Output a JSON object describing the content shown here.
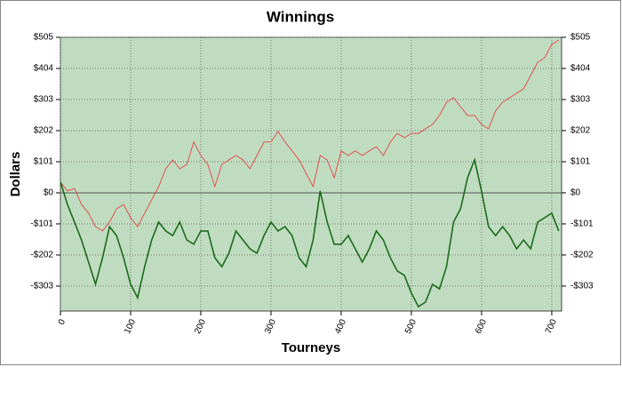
{
  "chart_data": {
    "type": "line",
    "title": "Winnings",
    "x_label": "Tourneys",
    "y_label": "Dollars",
    "x": [
      0,
      10,
      20,
      30,
      40,
      50,
      60,
      70,
      80,
      90,
      100,
      110,
      120,
      130,
      140,
      150,
      160,
      170,
      180,
      190,
      200,
      210,
      220,
      230,
      240,
      250,
      260,
      270,
      280,
      290,
      300,
      310,
      320,
      330,
      340,
      350,
      360,
      370,
      380,
      390,
      400,
      410,
      420,
      430,
      440,
      450,
      460,
      470,
      480,
      490,
      500,
      510,
      520,
      530,
      540,
      550,
      560,
      570,
      580,
      590,
      600,
      610,
      620,
      630,
      640,
      650,
      660,
      670,
      680,
      690,
      700,
      710
    ],
    "series": [
      {
        "color": "#e05050",
        "values": [
          35,
          6,
          14,
          -38,
          -66,
          -110,
          -124,
          -95,
          -52,
          -38,
          -81,
          -110,
          -66,
          -23,
          20,
          78,
          107,
          78,
          92,
          165,
          121,
          92,
          20,
          92,
          107,
          121,
          107,
          78,
          121,
          165,
          165,
          199,
          165,
          136,
          107,
          63,
          20,
          121,
          107,
          49,
          136,
          121,
          136,
          121,
          136,
          150,
          121,
          165,
          193,
          179,
          193,
          193,
          208,
          222,
          251,
          294,
          309,
          280,
          251,
          251,
          222,
          208,
          266,
          294,
          309,
          323,
          338,
          381,
          424,
          439,
          482,
          496
        ]
      },
      {
        "color": "#1a6b1a",
        "values": [
          35,
          -38,
          -95,
          -153,
          -225,
          -297,
          -211,
          -110,
          -139,
          -211,
          -297,
          -341,
          -240,
          -153,
          -95,
          -124,
          -139,
          -95,
          -153,
          -167,
          -124,
          -124,
          -211,
          -240,
          -196,
          -124,
          -153,
          -182,
          -196,
          -139,
          -95,
          -124,
          -110,
          -139,
          -211,
          -240,
          -153,
          6,
          -95,
          -167,
          -167,
          -139,
          -182,
          -225,
          -182,
          -124,
          -153,
          -211,
          -254,
          -268,
          -326,
          -370,
          -355,
          -297,
          -312,
          -240,
          -95,
          -52,
          49,
          107,
          6,
          -110,
          -139,
          -110,
          -139,
          -182,
          -153,
          -182,
          -95,
          -81,
          -66,
          -124
        ]
      }
    ],
    "xlim": [
      0,
      714
    ],
    "xticks": [
      0,
      100,
      200,
      300,
      400,
      500,
      600,
      700
    ],
    "ylim": [
      -384,
      505
    ],
    "yticks": [
      {
        "value": -303,
        "label": "-$303"
      },
      {
        "value": -202,
        "label": "-$202"
      },
      {
        "value": -101,
        "label": "-$101"
      },
      {
        "value": 0,
        "label": "$0"
      },
      {
        "value": 101,
        "label": "$101"
      },
      {
        "value": 202,
        "label": "$202"
      },
      {
        "value": 303,
        "label": "$303"
      },
      {
        "value": 404,
        "label": "$404"
      },
      {
        "value": 505,
        "label": "$505"
      }
    ],
    "y2lim": [
      -384,
      505
    ],
    "y2ticks": [
      {
        "value": -303,
        "label": "-$303"
      },
      {
        "value": -202,
        "label": "-$202"
      },
      {
        "value": -101,
        "label": "-$101"
      },
      {
        "value": 0,
        "label": "$0"
      },
      {
        "value": 101,
        "label": "$101"
      },
      {
        "value": 202,
        "label": "$202"
      },
      {
        "value": 303,
        "label": "$303"
      },
      {
        "value": 404,
        "label": "$404"
      },
      {
        "value": 505,
        "label": "$505"
      }
    ],
    "grid": true,
    "background": "#c0dcc0"
  }
}
